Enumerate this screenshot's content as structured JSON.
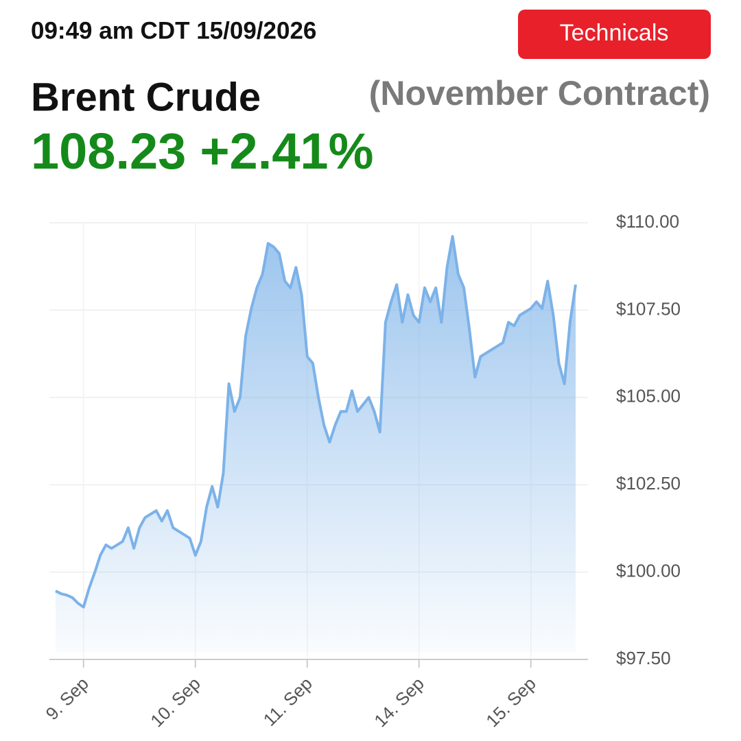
{
  "header": {
    "timestamp": "09:49 am CDT 15/09/2026",
    "button": "Technicals",
    "instrument": "Brent Crude",
    "contract": "(November Contract)",
    "price": "108.23",
    "change": "+2.41%"
  },
  "chart_data": {
    "type": "area",
    "color": "#7cb2e8",
    "grid": true,
    "categories": [
      null,
      null,
      null,
      null,
      null,
      "9. Sep",
      null,
      null,
      null,
      null,
      null,
      null,
      null,
      null,
      null,
      null,
      null,
      null,
      null,
      null,
      null,
      null,
      null,
      null,
      null,
      "10. Sep",
      null,
      null,
      null,
      null,
      null,
      null,
      null,
      null,
      null,
      null,
      null,
      null,
      null,
      null,
      null,
      null,
      null,
      null,
      null,
      "11. Sep",
      null,
      null,
      null,
      null,
      null,
      null,
      null,
      null,
      null,
      null,
      null,
      null,
      null,
      null,
      null,
      null,
      null,
      null,
      null,
      "14. Sep",
      null,
      null,
      null,
      null,
      null,
      null,
      null,
      null,
      null,
      null,
      null,
      null,
      null,
      null,
      null,
      null,
      null,
      null,
      null,
      "15. Sep",
      null,
      null,
      null,
      null,
      null,
      null,
      null,
      null
    ],
    "values": [
      99.46,
      99.38,
      99.34,
      99.27,
      99.11,
      99.0,
      99.54,
      99.99,
      100.48,
      100.78,
      100.68,
      100.78,
      100.88,
      101.27,
      100.68,
      101.27,
      101.56,
      101.66,
      101.76,
      101.46,
      101.76,
      101.27,
      101.17,
      101.07,
      100.97,
      100.48,
      100.88,
      101.86,
      102.45,
      101.86,
      102.84,
      105.39,
      104.6,
      105.0,
      106.76,
      107.55,
      108.14,
      108.53,
      109.41,
      109.31,
      109.12,
      108.33,
      108.14,
      108.72,
      107.94,
      106.17,
      105.98,
      105.0,
      104.21,
      103.72,
      104.21,
      104.6,
      104.6,
      105.19,
      104.6,
      104.8,
      105.0,
      104.6,
      104.01,
      107.15,
      107.74,
      108.23,
      107.15,
      107.94,
      107.35,
      107.15,
      108.14,
      107.74,
      108.14,
      107.15,
      108.72,
      109.61,
      108.53,
      108.14,
      106.96,
      105.58,
      106.17,
      106.27,
      106.37,
      106.47,
      106.57,
      107.15,
      107.05,
      107.35,
      107.45,
      107.55,
      107.74,
      107.55,
      108.33,
      107.35,
      105.98,
      105.39,
      107.15,
      108.23
    ],
    "ylim": [
      97.5,
      110
    ],
    "yticks": [
      {
        "value": 97.5,
        "label": "$97.50"
      },
      {
        "value": 100,
        "label": "$100.00"
      },
      {
        "value": 102.5,
        "label": "$102.50"
      },
      {
        "value": 105,
        "label": "$105.00"
      },
      {
        "value": 107.5,
        "label": "$107.50"
      },
      {
        "value": 110,
        "label": "$110.00"
      }
    ]
  }
}
